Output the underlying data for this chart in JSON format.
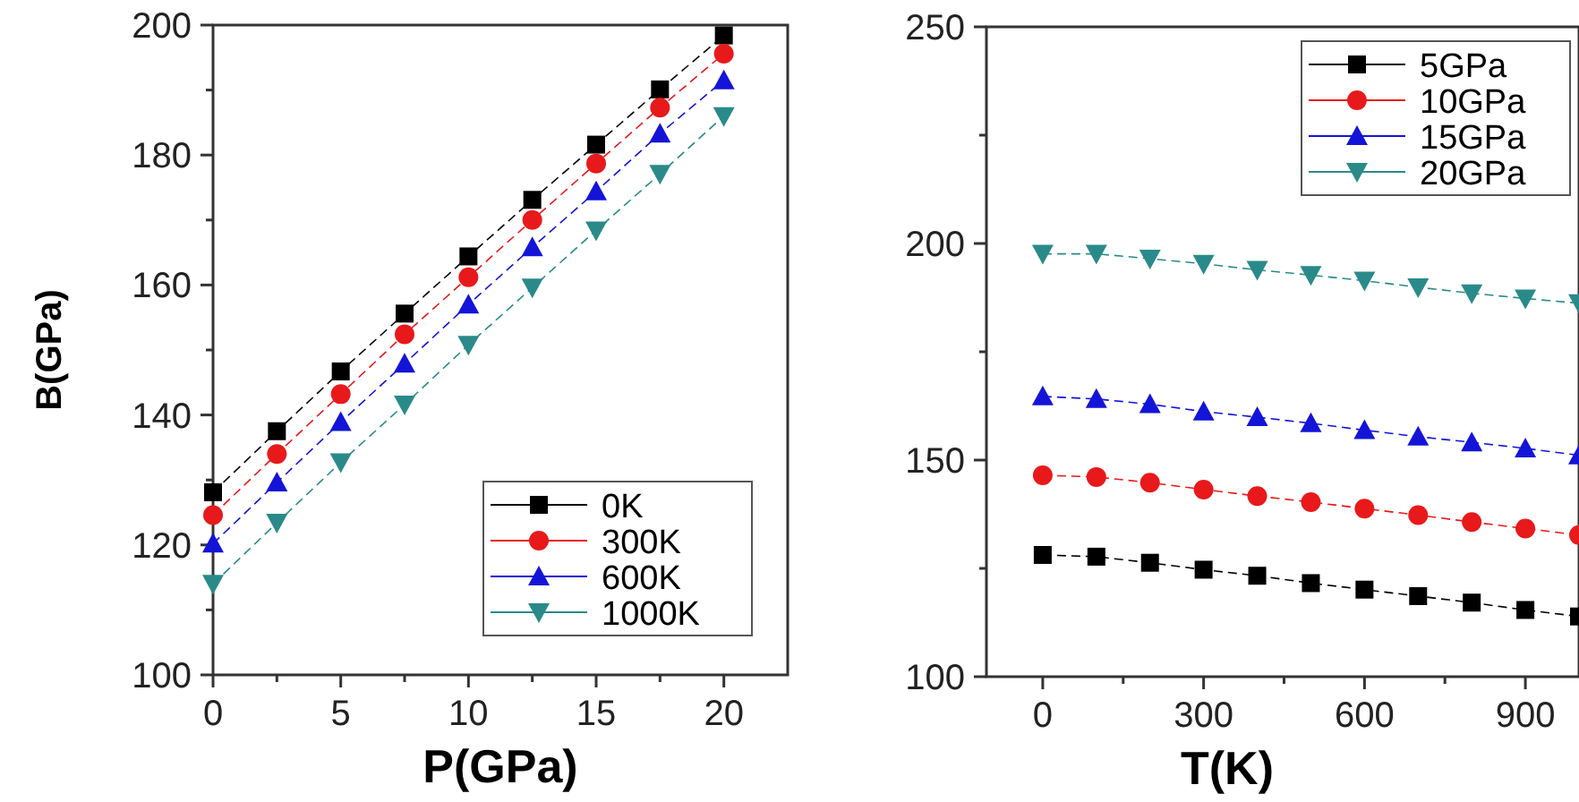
{
  "chart_data": [
    {
      "type": "line",
      "xlabel": "P(GPa)",
      "ylabel": "B(GPa)",
      "x": [
        0,
        2.5,
        5,
        7.5,
        10,
        12.5,
        15,
        17.5,
        20
      ],
      "xlim": [
        0,
        22.5
      ],
      "xticks": [
        0,
        {
          "value": 2.5,
          "label": null
        },
        5,
        {
          "value": 7.5,
          "label": null
        },
        10,
        {
          "value": 12.5,
          "label": null
        },
        15,
        {
          "value": 17.5,
          "label": null
        },
        20
      ],
      "ylim": [
        100,
        200
      ],
      "yticks": [
        100,
        {
          "value": 110,
          "label": null
        },
        120,
        {
          "value": 130,
          "label": null
        },
        140,
        {
          "value": 150,
          "label": null
        },
        160,
        {
          "value": 170,
          "label": null
        },
        180,
        {
          "value": 190,
          "label": null
        },
        200
      ],
      "grid": false,
      "legend": "bottom right",
      "line_style": "dashed",
      "series": [
        {
          "name": "0K",
          "color": "#000000",
          "marker": "square",
          "values": [
            128.1,
            137.5,
            146.7,
            155.6,
            164.4,
            173.1,
            181.6,
            190.1,
            198.4
          ]
        },
        {
          "name": "300K",
          "color": "#e8191b",
          "marker": "circle",
          "values": [
            124.6,
            134.0,
            143.2,
            152.4,
            161.2,
            170.0,
            178.7,
            187.3,
            195.6
          ]
        },
        {
          "name": "600K",
          "color": "#1414d8",
          "marker": "triangle",
          "values": [
            120.2,
            129.6,
            138.9,
            147.9,
            157.0,
            165.8,
            174.4,
            183.3,
            191.5
          ]
        },
        {
          "name": "1000K",
          "color": "#2a8a8a",
          "marker": "triangle-down",
          "values": [
            114.0,
            123.4,
            132.7,
            141.6,
            150.8,
            159.6,
            168.4,
            177.1,
            186.0
          ]
        }
      ]
    },
    {
      "type": "line",
      "xlabel": "T(K)",
      "x": [
        0,
        100,
        200,
        300,
        400,
        500,
        600,
        700,
        800,
        900,
        1000
      ],
      "xlim": [
        -105,
        1000
      ],
      "xticks": [
        0,
        {
          "value": 150,
          "label": null
        },
        300,
        {
          "value": 450,
          "label": null
        },
        600,
        {
          "value": 750,
          "label": null
        },
        900
      ],
      "ylim": [
        100,
        250
      ],
      "yticks": [
        100,
        {
          "value": 125,
          "label": null
        },
        150,
        {
          "value": 175,
          "label": null
        },
        200,
        {
          "value": 225,
          "label": null
        },
        250
      ],
      "grid": false,
      "legend": "top right",
      "line_style": "dashed",
      "series": [
        {
          "name": "5GPa",
          "color": "#000000",
          "marker": "square",
          "values": [
            128.1,
            127.7,
            126.3,
            124.7,
            123.3,
            121.6,
            120.1,
            118.6,
            117.1,
            115.4,
            113.9
          ]
        },
        {
          "name": "10GPa",
          "color": "#e8191b",
          "marker": "circle",
          "values": [
            146.5,
            146.1,
            144.8,
            143.2,
            141.7,
            140.3,
            138.8,
            137.3,
            135.7,
            134.2,
            132.7
          ]
        },
        {
          "name": "15GPa",
          "color": "#1414d8",
          "marker": "triangle",
          "values": [
            164.7,
            164.1,
            162.9,
            161.2,
            159.9,
            158.5,
            156.9,
            155.4,
            154.1,
            152.7,
            151.1
          ]
        },
        {
          "name": "20GPa",
          "color": "#2a8a8a",
          "marker": "triangle-down",
          "values": [
            197.6,
            197.6,
            196.5,
            195.3,
            193.9,
            192.7,
            191.4,
            189.9,
            188.5,
            187.3,
            186.2
          ]
        }
      ]
    }
  ]
}
